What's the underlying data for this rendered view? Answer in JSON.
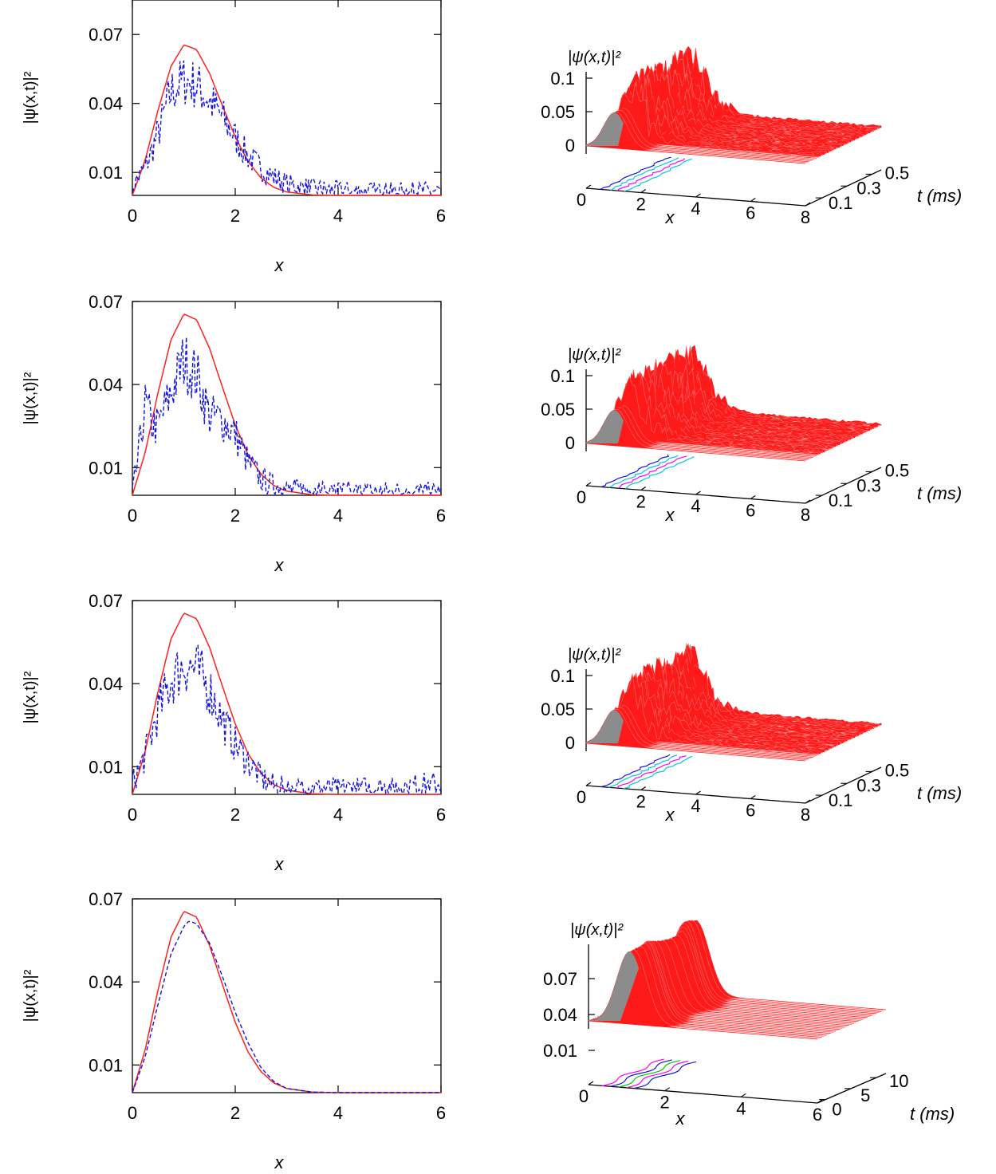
{
  "colors": {
    "analytic": "#ff2020",
    "numeric": "#1515e0",
    "surface": "#ff1a1a",
    "surface_side": "#8c8c8c",
    "axis": "#000000"
  },
  "chart_data": [
    {
      "type": "line",
      "row": 1,
      "ylabel": "|ψ(x,t)|²",
      "xlabel": "x",
      "xlim": [
        0,
        6
      ],
      "ylim": [
        0,
        0.085
      ],
      "xticks": [
        0,
        2,
        4,
        6
      ],
      "yticks": [
        0.01,
        0.04,
        0.07
      ],
      "series": [
        {
          "style": "solid",
          "color": "#ff2020",
          "x": [
            0,
            0.25,
            0.5,
            0.75,
            1,
            1.25,
            1.5,
            1.75,
            2,
            2.25,
            2.5,
            2.75,
            3,
            3.5,
            4,
            5,
            6
          ],
          "y": [
            0,
            0.0155,
            0.0372,
            0.0561,
            0.0655,
            0.0634,
            0.0531,
            0.0391,
            0.0254,
            0.0147,
            0.0076,
            0.0035,
            0.0015,
            0.0002,
            0,
            0,
            0
          ]
        },
        {
          "style": "dashed",
          "color": "#1515e0",
          "noisy": true,
          "x": [
            0,
            0.25,
            0.5,
            0.75,
            1,
            1.25,
            1.5,
            1.75,
            2,
            2.25,
            2.5,
            2.75,
            3,
            3.5,
            4,
            5,
            6
          ],
          "y": [
            0.004,
            0.012,
            0.027,
            0.045,
            0.05,
            0.048,
            0.041,
            0.034,
            0.025,
            0.017,
            0.012,
            0.008,
            0.005,
            0.003,
            0.002,
            0.0015,
            0.002
          ]
        }
      ]
    },
    {
      "type": "line",
      "row": 2,
      "ylabel": "|ψ(x,t)|²",
      "xlabel": "x",
      "xlim": [
        0,
        6
      ],
      "ylim": [
        0,
        0.07
      ],
      "xticks": [
        0,
        2,
        4,
        6
      ],
      "yticks": [
        0.01,
        0.04,
        0.07
      ],
      "series": [
        {
          "style": "solid",
          "color": "#ff2020",
          "x": [
            0,
            0.25,
            0.5,
            0.75,
            1,
            1.25,
            1.5,
            1.75,
            2,
            2.25,
            2.5,
            2.75,
            3,
            3.5,
            4,
            5,
            6
          ],
          "y": [
            0,
            0.0155,
            0.0372,
            0.0561,
            0.0655,
            0.0634,
            0.0531,
            0.0391,
            0.0254,
            0.0147,
            0.0076,
            0.0035,
            0.0015,
            0.0002,
            0,
            0,
            0
          ]
        },
        {
          "style": "dashed",
          "color": "#1515e0",
          "noisy": true,
          "x": [
            0,
            0.1,
            0.25,
            0.4,
            0.5,
            0.75,
            1,
            1.25,
            1.5,
            1.75,
            2,
            2.25,
            2.5,
            2.75,
            3,
            3.5,
            4,
            5,
            6
          ],
          "y": [
            0,
            0.012,
            0.033,
            0.025,
            0.025,
            0.037,
            0.049,
            0.043,
            0.029,
            0.027,
            0.022,
            0.012,
            0.006,
            0.003,
            0.002,
            0.0015,
            0.0012,
            0.001,
            0.001
          ]
        }
      ]
    },
    {
      "type": "line",
      "row": 3,
      "ylabel": "|ψ(x,t)|²",
      "xlabel": "x",
      "xlim": [
        0,
        6
      ],
      "ylim": [
        0,
        0.07
      ],
      "xticks": [
        0,
        2,
        4,
        6
      ],
      "yticks": [
        0.01,
        0.04,
        0.07
      ],
      "series": [
        {
          "style": "solid",
          "color": "#ff2020",
          "x": [
            0,
            0.25,
            0.5,
            0.75,
            1,
            1.25,
            1.5,
            1.75,
            2,
            2.25,
            2.5,
            2.75,
            3,
            3.5,
            4,
            5,
            6
          ],
          "y": [
            0,
            0.0155,
            0.0372,
            0.0561,
            0.0655,
            0.0634,
            0.0531,
            0.0391,
            0.0254,
            0.0147,
            0.0076,
            0.0035,
            0.0015,
            0.0002,
            0,
            0,
            0
          ]
        },
        {
          "style": "dashed",
          "color": "#1515e0",
          "noisy": true,
          "x": [
            0,
            0.25,
            0.5,
            0.75,
            1,
            1.25,
            1.5,
            1.75,
            2,
            2.25,
            2.5,
            2.75,
            3,
            3.5,
            4,
            5,
            6
          ],
          "y": [
            0.004,
            0.014,
            0.03,
            0.041,
            0.047,
            0.045,
            0.038,
            0.027,
            0.018,
            0.012,
            0.006,
            0.003,
            0.002,
            0.002,
            0.002,
            0.0025,
            0.004
          ]
        }
      ]
    },
    {
      "type": "line",
      "row": 4,
      "ylabel": "|ψ(x,t)|²",
      "xlabel": "x",
      "xlim": [
        0,
        6
      ],
      "ylim": [
        0,
        0.07
      ],
      "xticks": [
        0,
        2,
        4,
        6
      ],
      "yticks": [
        0.01,
        0.04,
        0.07
      ],
      "series": [
        {
          "style": "solid",
          "color": "#ff2020",
          "x": [
            0,
            0.25,
            0.5,
            0.75,
            1,
            1.25,
            1.5,
            1.75,
            2,
            2.25,
            2.5,
            2.75,
            3,
            3.5,
            4,
            5,
            6
          ],
          "y": [
            0,
            0.0155,
            0.0372,
            0.0561,
            0.0655,
            0.0634,
            0.0531,
            0.0391,
            0.0254,
            0.0147,
            0.0076,
            0.0035,
            0.0015,
            0.0002,
            0,
            0,
            0
          ]
        },
        {
          "style": "dashed",
          "color": "#1515e0",
          "noisy": false,
          "x": [
            0,
            0.25,
            0.5,
            0.75,
            1,
            1.1,
            1.25,
            1.5,
            1.75,
            2,
            2.25,
            2.5,
            2.75,
            3,
            3.5,
            4,
            5,
            6
          ],
          "y": [
            0,
            0.013,
            0.032,
            0.05,
            0.06,
            0.062,
            0.061,
            0.054,
            0.042,
            0.029,
            0.018,
            0.009,
            0.004,
            0.0015,
            0.0002,
            0,
            0,
            0
          ]
        }
      ]
    },
    {
      "type": "surface",
      "row": 1,
      "zlabel": "|ψ(x,t)|²",
      "xlabel": "x",
      "ylabel": "t (ms)",
      "xticks": [
        "0",
        "2",
        "4",
        "6",
        "8"
      ],
      "ylim": [
        0,
        0.6
      ],
      "tticks": [
        "0.1",
        "0.3",
        "0.5"
      ],
      "zticks": [
        "0",
        "0.05",
        "0.1"
      ],
      "noisy": true
    },
    {
      "type": "surface",
      "row": 2,
      "zlabel": "|ψ(x,t)|²",
      "xlabel": "x",
      "ylabel": "t (ms)",
      "xticks": [
        "0",
        "2",
        "4",
        "6",
        "8"
      ],
      "ylim": [
        0,
        0.6
      ],
      "tticks": [
        "0.1",
        "0.3",
        "0.5"
      ],
      "zticks": [
        "0",
        "0.05",
        "0.1"
      ],
      "noisy": true
    },
    {
      "type": "surface",
      "row": 3,
      "zlabel": "|ψ(x,t)|²",
      "xlabel": "x",
      "ylabel": "t (ms)",
      "xticks": [
        "0",
        "2",
        "4",
        "6",
        "8"
      ],
      "ylim": [
        0,
        0.6
      ],
      "tticks": [
        "0.1",
        "0.3",
        "0.5"
      ],
      "zticks": [
        "0",
        "0.05",
        "0.1"
      ],
      "noisy": true
    },
    {
      "type": "surface",
      "row": 4,
      "zlabel": "|ψ(x,t)|²",
      "xlabel": "x",
      "ylabel": "t (ms)",
      "xticks": [
        "0",
        "2",
        "4",
        "6"
      ],
      "ylim": [
        0,
        12
      ],
      "tticks": [
        "0",
        "5",
        "10"
      ],
      "zticks": [
        "0.01",
        "0.04",
        "0.07"
      ],
      "noisy": false
    }
  ]
}
